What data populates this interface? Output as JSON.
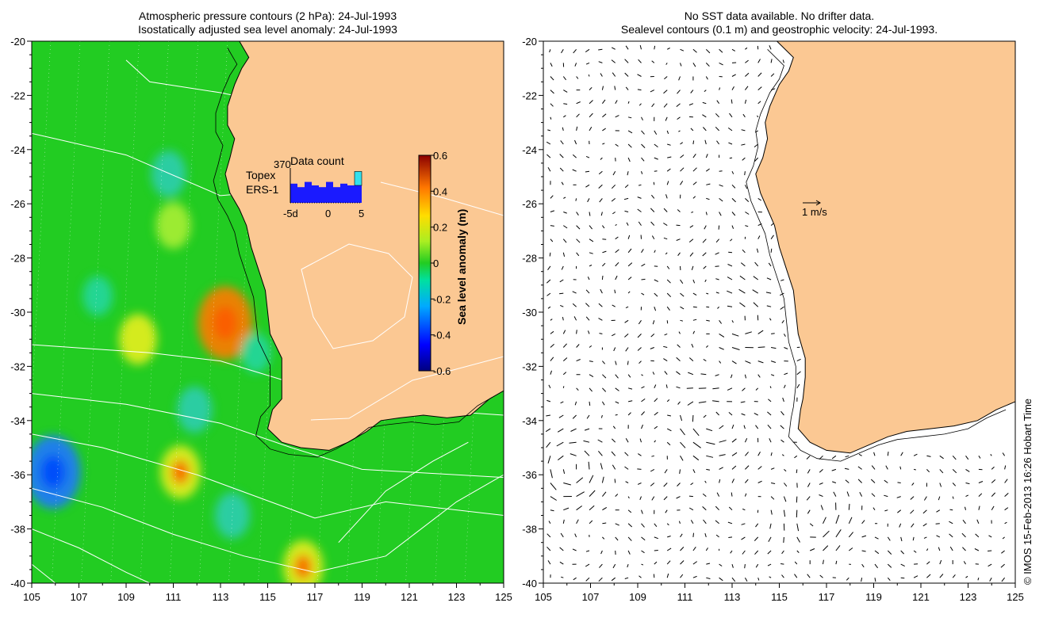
{
  "left_panel": {
    "title_line1": "Atmospheric pressure contours (2 hPa): 24-Jul-1993",
    "title_line2": "Isostatically adjusted sea level anomaly: 24-Jul-1993"
  },
  "right_panel": {
    "title_line1": "No SST data available.  No drifter data.",
    "title_line2": "Sealevel contours (0.1 m) and geostrophic velocity: 24-Jul-1993.",
    "velocity_scale_label": "1 m/s"
  },
  "inset": {
    "max_count_label": "370",
    "title": "Data count",
    "topex_label": "Topex",
    "ers_label": "ERS-1",
    "x_tick_labels": [
      "-5d",
      "0",
      "5"
    ],
    "counts_ers": [
      0.55,
      0.45,
      0.6,
      0.5,
      0.45,
      0.6,
      0.45,
      0.55,
      0.5,
      0.5
    ],
    "counts_topex": [
      0,
      0,
      0,
      0,
      0,
      0,
      0,
      0,
      0,
      0.4
    ],
    "colors": {
      "topex": "#33e0ee",
      "ers": "#1a1aff"
    }
  },
  "colorbar": {
    "label": "Sea level anomaly (m)",
    "tick_labels": [
      "0.6",
      "0.4",
      "0.2",
      "0",
      "-0.2",
      "-0.4",
      "-0.6"
    ]
  },
  "credit": "© IMOS 15-Feb-2013 16:26 Hobart Time",
  "colors": {
    "land": "#fbc893",
    "ocean_base": "#22cc22",
    "coast": "#000000"
  },
  "chart_data": [
    {
      "type": "heatmap",
      "title": "Atmospheric pressure contours (2 hPa): 24-Jul-1993 / Isostatically adjusted sea level anomaly: 24-Jul-1993",
      "xlim": [
        105,
        125
      ],
      "ylim": [
        -40,
        -20
      ],
      "x_ticks": [
        105,
        107,
        109,
        111,
        113,
        115,
        117,
        119,
        121,
        123,
        125
      ],
      "y_ticks": [
        -40,
        -38,
        -36,
        -34,
        -32,
        -30,
        -28,
        -26,
        -24,
        -22,
        -20
      ],
      "value_range": [
        -0.6,
        0.6
      ],
      "units": "m",
      "anomaly_features": [
        {
          "lon": 113.2,
          "lat": -30.4,
          "value": 0.35
        },
        {
          "lon": 111.3,
          "lat": -35.9,
          "value": 0.2
        },
        {
          "lon": 109.5,
          "lat": -31.0,
          "value": 0.18
        },
        {
          "lon": 116.5,
          "lat": -39.4,
          "value": 0.2
        },
        {
          "lon": 111.0,
          "lat": -26.8,
          "value": 0.15
        },
        {
          "lon": 105.9,
          "lat": -35.9,
          "value": -0.35
        },
        {
          "lon": 110.8,
          "lat": -24.9,
          "value": -0.15
        },
        {
          "lon": 111.9,
          "lat": -33.6,
          "value": -0.15
        },
        {
          "lon": 113.5,
          "lat": -37.5,
          "value": -0.15
        },
        {
          "lon": 107.8,
          "lat": -29.4,
          "value": -0.1
        },
        {
          "lon": 114.5,
          "lat": -31.5,
          "value": -0.1
        }
      ]
    },
    {
      "type": "scatter",
      "title": "Sealevel contours (0.1 m) and geostrophic velocity: 24-Jul-1993.",
      "xlim": [
        105,
        125
      ],
      "ylim": [
        -40,
        -20
      ],
      "x_ticks": [
        105,
        107,
        109,
        111,
        113,
        115,
        117,
        119,
        121,
        123,
        125
      ],
      "y_ticks": [
        -40,
        -38,
        -36,
        -34,
        -32,
        -30,
        -28,
        -26,
        -24,
        -22,
        -20
      ],
      "vector_field": "geostrophic velocity",
      "reference_vector": "1 m/s",
      "eddies": [
        {
          "lon": 113.3,
          "lat": -30.5
        },
        {
          "lon": 106.0,
          "lat": -35.9
        },
        {
          "lon": 111.8,
          "lat": -34.0
        },
        {
          "lon": 116.5,
          "lat": -37.8
        }
      ]
    }
  ]
}
